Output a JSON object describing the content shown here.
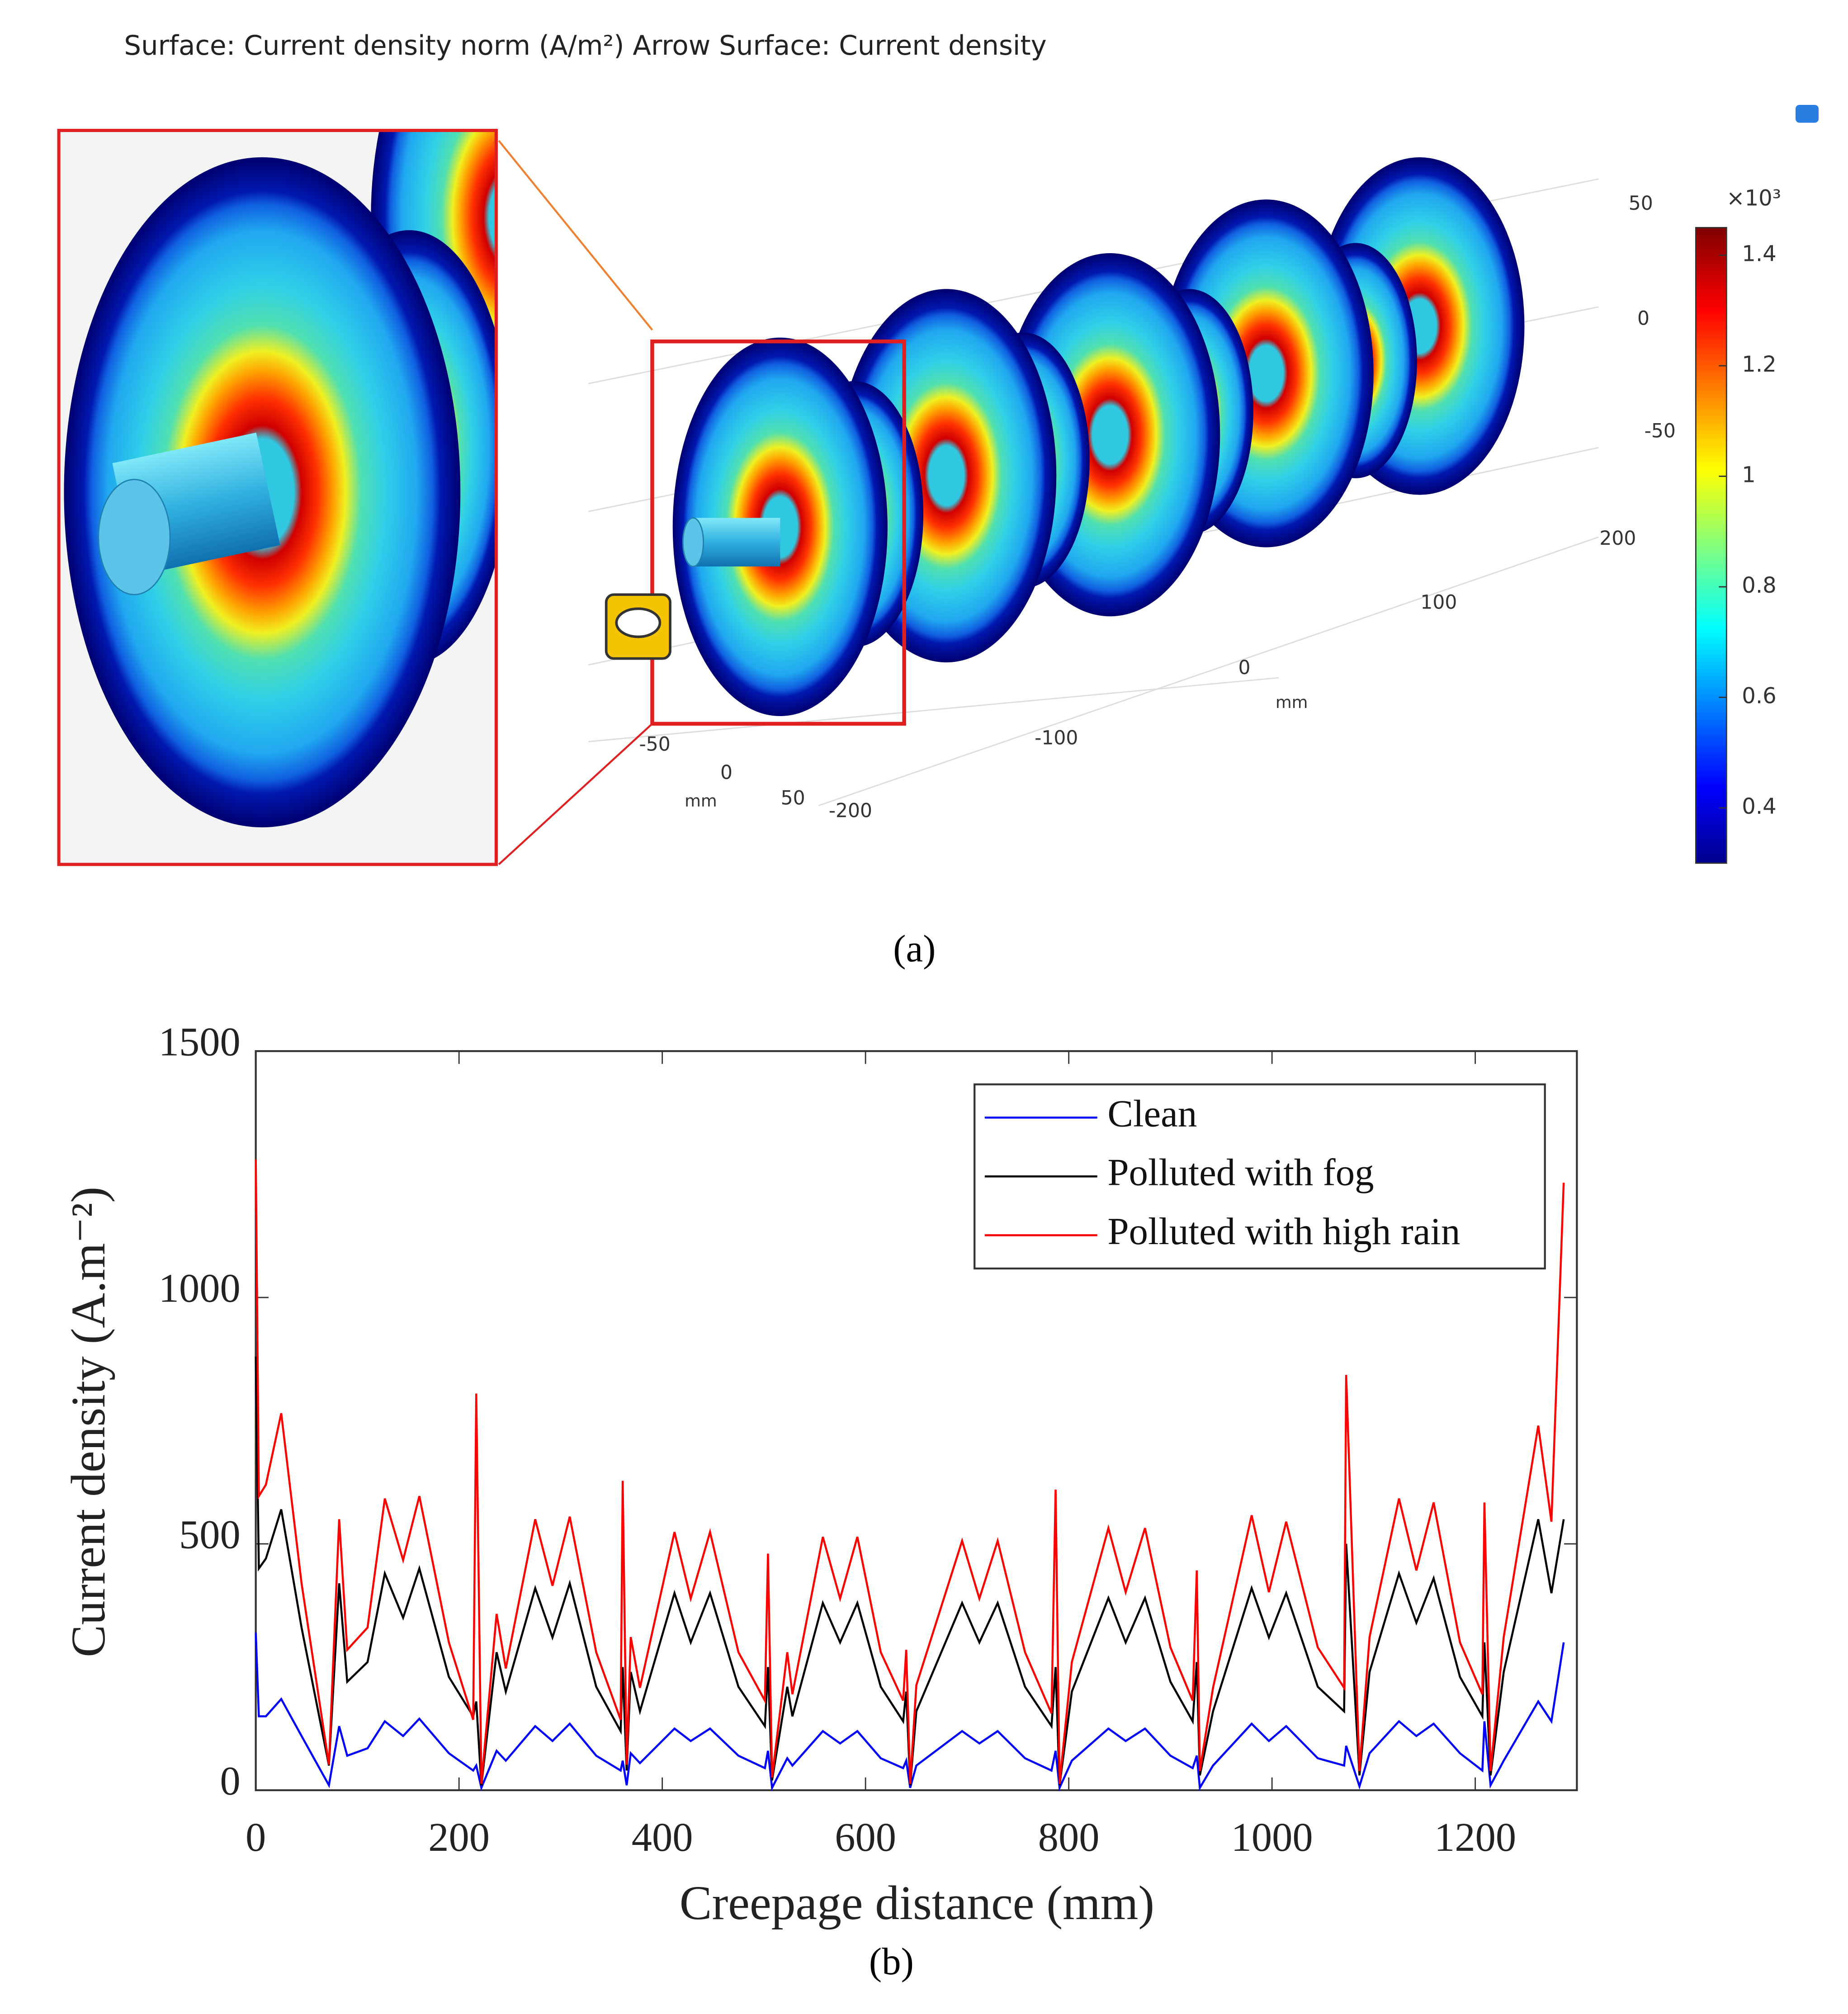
{
  "chart_data": [
    {
      "type": "surface3d",
      "title": "Surface: Current density norm (A/m²)  Arrow Surface: Current density",
      "colorbar_label": "×10³",
      "colorbar_lim": [
        0.3,
        1.45
      ],
      "colorbar_ticks": [
        1.4,
        1.2,
        1,
        0.8,
        0.6,
        0.4
      ],
      "zticks": [
        50,
        0,
        -50
      ],
      "xticks": [
        -200,
        -100,
        0,
        100,
        200
      ],
      "yticks": [
        -50,
        0,
        50
      ],
      "unit_x": "mm",
      "unit_y": "mm",
      "caption": "(a)"
    },
    {
      "type": "line",
      "xlabel": "Creepage distance (mm)",
      "ylabel": "Current density (A.m⁻²)",
      "caption": "(b)",
      "xlim": [
        0,
        1300
      ],
      "xticks": [
        0,
        200,
        400,
        600,
        800,
        1000,
        1200
      ],
      "ylim": [
        0,
        1500
      ],
      "yticks": [
        0,
        500,
        1000,
        1500
      ],
      "legend": "upper right",
      "x": [
        0,
        3,
        10,
        25,
        45,
        72,
        82,
        90,
        110,
        127,
        145,
        161,
        190,
        214,
        217,
        222,
        237,
        246,
        275,
        292,
        309,
        335,
        359,
        361,
        365,
        369,
        378,
        412,
        428,
        447,
        475,
        501,
        504,
        508,
        523,
        528,
        558,
        575,
        592,
        615,
        637,
        640,
        644,
        650,
        695,
        712,
        730,
        757,
        783,
        787,
        791,
        803,
        839,
        856,
        875,
        900,
        922,
        926,
        929,
        942,
        980,
        997,
        1014,
        1045,
        1071,
        1073,
        1086,
        1096,
        1125,
        1142,
        1159,
        1185,
        1207,
        1209,
        1215,
        1228,
        1262,
        1275,
        1287
      ],
      "series": [
        {
          "name": "Clean",
          "color": "#0000ff",
          "values": [
            320,
            150,
            150,
            185,
            110,
            10,
            130,
            70,
            85,
            140,
            110,
            145,
            75,
            40,
            50,
            5,
            80,
            60,
            130,
            100,
            135,
            70,
            40,
            60,
            10,
            75,
            55,
            125,
            100,
            125,
            70,
            45,
            80,
            5,
            65,
            50,
            120,
            95,
            120,
            65,
            45,
            60,
            5,
            50,
            120,
            95,
            120,
            65,
            40,
            80,
            5,
            60,
            125,
            100,
            125,
            70,
            45,
            70,
            5,
            50,
            135,
            100,
            130,
            65,
            50,
            90,
            8,
            75,
            140,
            110,
            135,
            75,
            40,
            140,
            10,
            60,
            180,
            140,
            300
          ]
        },
        {
          "name": "Polluted with fog",
          "color": "#000000",
          "values": [
            880,
            450,
            470,
            570,
            330,
            50,
            420,
            220,
            260,
            440,
            350,
            450,
            230,
            150,
            180,
            10,
            280,
            200,
            410,
            310,
            420,
            210,
            120,
            250,
            40,
            240,
            160,
            400,
            300,
            400,
            210,
            130,
            250,
            20,
            210,
            150,
            380,
            300,
            380,
            210,
            140,
            200,
            10,
            160,
            380,
            300,
            380,
            210,
            130,
            250,
            10,
            200,
            390,
            300,
            390,
            220,
            140,
            260,
            30,
            160,
            410,
            310,
            400,
            210,
            160,
            500,
            30,
            240,
            440,
            340,
            430,
            230,
            150,
            300,
            30,
            240,
            550,
            400,
            550
          ]
        },
        {
          "name": "Polluted with high rain",
          "color": "#ff0000",
          "values": [
            1280,
            597,
            620,
            765,
            420,
            52,
            550,
            285,
            330,
            592,
            467,
            597,
            300,
            143,
            805,
            13,
            358,
            247,
            550,
            415,
            555,
            280,
            143,
            628,
            52,
            311,
            208,
            524,
            389,
            524,
            280,
            182,
            480,
            26,
            280,
            195,
            514,
            389,
            514,
            280,
            182,
            285,
            13,
            213,
            506,
            389,
            506,
            280,
            156,
            610,
            13,
            260,
            532,
            402,
            532,
            290,
            182,
            446,
            39,
            208,
            558,
            402,
            545,
            290,
            208,
            843,
            39,
            311,
            592,
            446,
            584,
            300,
            195,
            584,
            39,
            311,
            740,
            545,
            1233
          ]
        }
      ]
    }
  ]
}
